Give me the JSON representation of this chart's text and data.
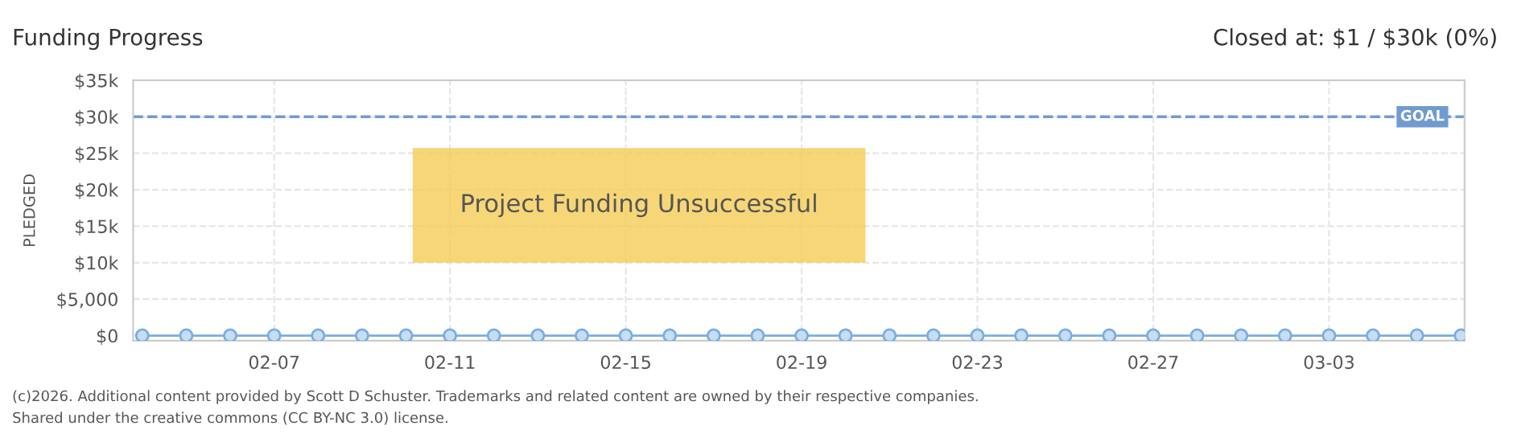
{
  "chart_data": {
    "type": "line",
    "title": "Funding Progress",
    "subtitle": "Closed at: $1 / $30k (0%)",
    "ylabel": "PLEDGED",
    "x": [
      "2026-02-04",
      "2026-02-05",
      "2026-02-06",
      "2026-02-07",
      "2026-02-08",
      "2026-02-09",
      "2026-02-10",
      "2026-02-11",
      "2026-02-12",
      "2026-02-13",
      "2026-02-14",
      "2026-02-15",
      "2026-02-16",
      "2026-02-17",
      "2026-02-18",
      "2026-02-19",
      "2026-02-20",
      "2026-02-21",
      "2026-02-22",
      "2026-02-23",
      "2026-02-24",
      "2026-02-25",
      "2026-02-26",
      "2026-02-27",
      "2026-02-28",
      "2026-03-01",
      "2026-03-02",
      "2026-03-03",
      "2026-03-04",
      "2026-03-05",
      "2026-03-06"
    ],
    "series": [
      {
        "color": "#7aaee0",
        "values": [
          0,
          0,
          0,
          0,
          0,
          0,
          0,
          0,
          0,
          0,
          0,
          0,
          0,
          0,
          0,
          0,
          0,
          0,
          0,
          0,
          0,
          0,
          0,
          0,
          0,
          0,
          0,
          0,
          0,
          0,
          0
        ]
      }
    ],
    "xlim": [
      "2026-02-03T19:00",
      "2026-03-06T02:00"
    ],
    "xticks": [
      {
        "value": "2026-02-07",
        "label": "02-07"
      },
      {
        "value": "2026-02-11",
        "label": "02-11"
      },
      {
        "value": "2026-02-15",
        "label": "02-15"
      },
      {
        "value": "2026-02-19",
        "label": "02-19"
      },
      {
        "value": "2026-02-23",
        "label": "02-23"
      },
      {
        "value": "2026-02-27",
        "label": "02-27"
      },
      {
        "value": "2026-03-03",
        "label": "03-03"
      }
    ],
    "ylim": [
      -700,
      35000
    ],
    "yticks": [
      {
        "value": 0,
        "label": "$0"
      },
      {
        "value": 5000,
        "label": "$5,000"
      },
      {
        "value": 10000,
        "label": "$10k"
      },
      {
        "value": 15000,
        "label": "$15k"
      },
      {
        "value": 20000,
        "label": "$20k"
      },
      {
        "value": 25000,
        "label": "$25k"
      },
      {
        "value": 30000,
        "label": "$30k"
      },
      {
        "value": 35000,
        "label": "$35k"
      }
    ],
    "ref_lines": [
      {
        "axis": "y",
        "value": 30000,
        "label": "GOAL",
        "color": "#6f9bd1",
        "line_style": "dashed"
      }
    ],
    "grid": true,
    "marker": "circle",
    "line_style": "solid",
    "annotations": [
      "Project Funding Unsuccessful",
      "(c)2026. Additional content provided by Scott D Schuster. Trademarks and related content are owned by their respective companies.",
      "Shared under the creative commons (CC BY-NC 3.0) license."
    ]
  }
}
